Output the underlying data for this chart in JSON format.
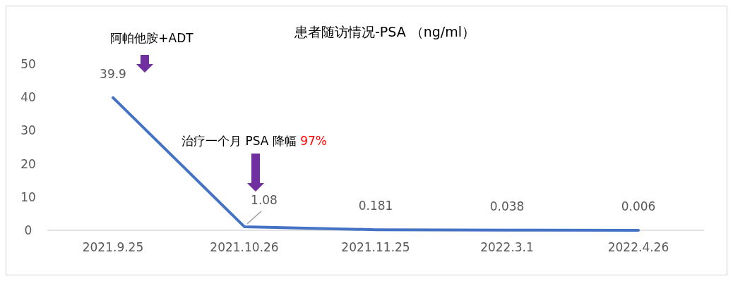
{
  "chart_data": {
    "type": "line",
    "title": "患者随访情况-PSA （ng/ml）",
    "categories": [
      "2021.9.25",
      "2021.10.26",
      "2021.11.25",
      "2022.3.1",
      "2022.4.26"
    ],
    "series": [
      {
        "color": "#4472c4",
        "values": [
          39.9,
          1.08,
          0.181,
          0.038,
          0.006
        ]
      }
    ],
    "ylim": [
      0,
      50
    ],
    "yticks": [
      0,
      10,
      20,
      30,
      40,
      50
    ],
    "grid": false,
    "marker": "none",
    "line_style": "solid",
    "data_labels": true,
    "annotations": [
      "阿帕他胺+ADT",
      "治疗一个月 PSA 降幅 97%"
    ]
  }
}
